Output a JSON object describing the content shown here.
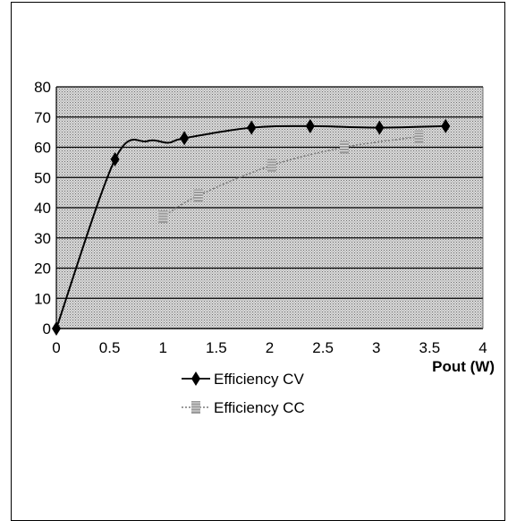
{
  "chart_data": {
    "type": "line",
    "xlabel": "Pout (W)",
    "ylabel": "",
    "xlim": [
      0,
      4
    ],
    "ylim": [
      0,
      80
    ],
    "xticks": [
      "0",
      "0.5",
      "1",
      "1.5",
      "2",
      "2.5",
      "3",
      "3.5",
      "4"
    ],
    "yticks": [
      "0",
      "10",
      "20",
      "30",
      "40",
      "50",
      "60",
      "70",
      "80"
    ],
    "grid": true,
    "legend_position": "bottom-center",
    "series": [
      {
        "name": "Efficiency CV",
        "marker": "diamond",
        "line_style": "solid",
        "color": "#000000",
        "x": [
          0,
          0.55,
          1.2,
          1.83,
          2.38,
          3.03,
          3.65
        ],
        "y": [
          0,
          56,
          63,
          66.5,
          67,
          66.5,
          67
        ]
      },
      {
        "name": "Efficiency CC",
        "marker": "square",
        "line_style": "dotted",
        "color": "#888888",
        "x": [
          1.0,
          1.33,
          2.02,
          2.7,
          3.4
        ],
        "y": [
          37,
          44,
          54,
          60,
          63.5
        ]
      }
    ]
  }
}
